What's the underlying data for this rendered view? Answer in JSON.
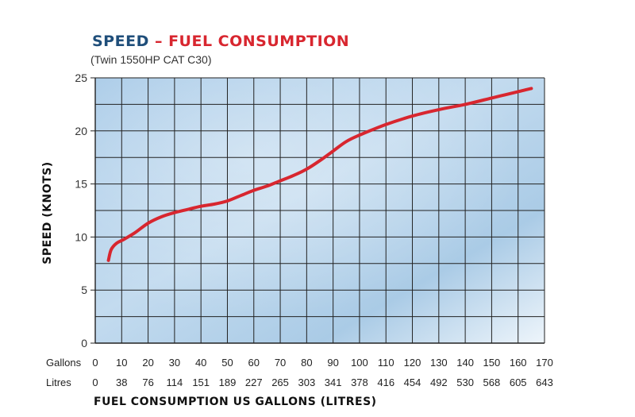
{
  "colors": {
    "title_blue": "#1f4e7a",
    "title_red": "#d8262f",
    "curve": "#d8262f",
    "grid": "#222222",
    "bg_dark": "#9ec4e4",
    "bg_light": "#f3f8fd"
  },
  "header": {
    "title_part1": "SPEED",
    "title_dash": " – ",
    "title_part2": "FUEL CONSUMPTION",
    "subtitle": "(Twin 1550HP CAT C30)"
  },
  "chart_data": {
    "type": "line",
    "title": "SPEED – FUEL CONSUMPTION",
    "subtitle": "(Twin 1550HP CAT C30)",
    "xlabel": "FUEL CONSUMPTION US GALLONS (LITRES)",
    "ylabel": "SPEED (KNOTS)",
    "xlim": [
      0,
      170
    ],
    "ylim": [
      0,
      25
    ],
    "grid": true,
    "y_ticks": [
      0,
      5,
      10,
      15,
      20,
      25
    ],
    "x_row_labels": [
      "Gallons",
      "Litres"
    ],
    "x_ticks_gallons": [
      "0",
      "10",
      "20",
      "30",
      "40",
      "50",
      "60",
      "70",
      "80",
      "90",
      "100",
      "110",
      "120",
      "130",
      "140",
      "150",
      "160",
      "170"
    ],
    "x_ticks_litres": [
      "0",
      "38",
      "76",
      "114",
      "151",
      "189",
      "227",
      "265",
      "303",
      "341",
      "378",
      "416",
      "454",
      "492",
      "530",
      "568",
      "605",
      "643"
    ],
    "series": [
      {
        "name": "Speed",
        "x": [
          5,
          6,
          8,
          11,
          15,
          20,
          25,
          30,
          35,
          40,
          45,
          50,
          55,
          60,
          65,
          70,
          75,
          80,
          85,
          90,
          95,
          100,
          110,
          120,
          130,
          140,
          150,
          160,
          165
        ],
        "y": [
          7.8,
          8.8,
          9.4,
          9.8,
          10.4,
          11.3,
          11.9,
          12.3,
          12.6,
          12.9,
          13.1,
          13.4,
          13.9,
          14.4,
          14.8,
          15.3,
          15.8,
          16.4,
          17.2,
          18.1,
          19.0,
          19.6,
          20.6,
          21.4,
          22.0,
          22.5,
          23.1,
          23.7,
          24.0
        ]
      }
    ]
  }
}
